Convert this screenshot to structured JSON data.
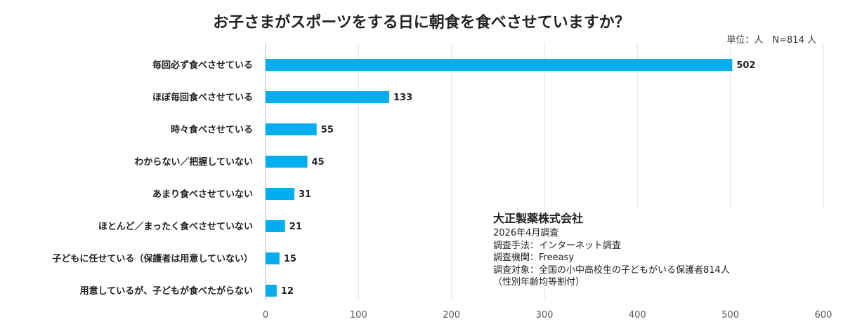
{
  "chart_data": {
    "type": "bar",
    "orientation": "horizontal",
    "title": "お子さまがスポーツをする日に朝食を食べさせていますか？",
    "unit_note": "単位：人　N=814 人",
    "categories": [
      "毎回必ず食べさせている",
      "ほぼ毎回食べさせている",
      "時々食べさせている",
      "わからない／把握していない",
      "あまり食べさせていない",
      "ほとんど／まったく食べさせていない",
      "子どもに任せている（保護者は用意していない）",
      "用意しているが、子どもが食べたがらない"
    ],
    "values": [
      502,
      133,
      55,
      45,
      31,
      21,
      15,
      12
    ],
    "xlim": [
      0,
      600
    ],
    "xticks": [
      0,
      100,
      200,
      300,
      400,
      500,
      600
    ],
    "grid": true,
    "bar_color": "#00aeef"
  },
  "survey": {
    "company": "大正製薬株式会社",
    "lines": [
      "2026年4月調査",
      "調査手法：インターネット調査",
      "調査機関：Freeasy",
      "調査対象：全国の小中高校生の子どもがいる保護者814人",
      "（性別年齢均等割付）"
    ]
  }
}
